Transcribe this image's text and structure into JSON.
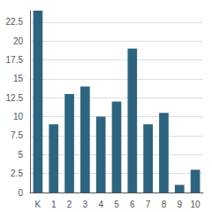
{
  "chart_data": {
    "type": "bar",
    "categories": [
      "K",
      "1",
      "2",
      "3",
      "4",
      "5",
      "6",
      "7",
      "8",
      "9",
      "10"
    ],
    "values": [
      24,
      9,
      13,
      14,
      10,
      12,
      19,
      9,
      10.5,
      1,
      3
    ],
    "color": "#2d6580",
    "ylim": [
      0,
      24
    ],
    "yticks": [
      0,
      2.5,
      5,
      7.5,
      10,
      12.5,
      15,
      17.5,
      20,
      22.5
    ],
    "grid": true
  }
}
